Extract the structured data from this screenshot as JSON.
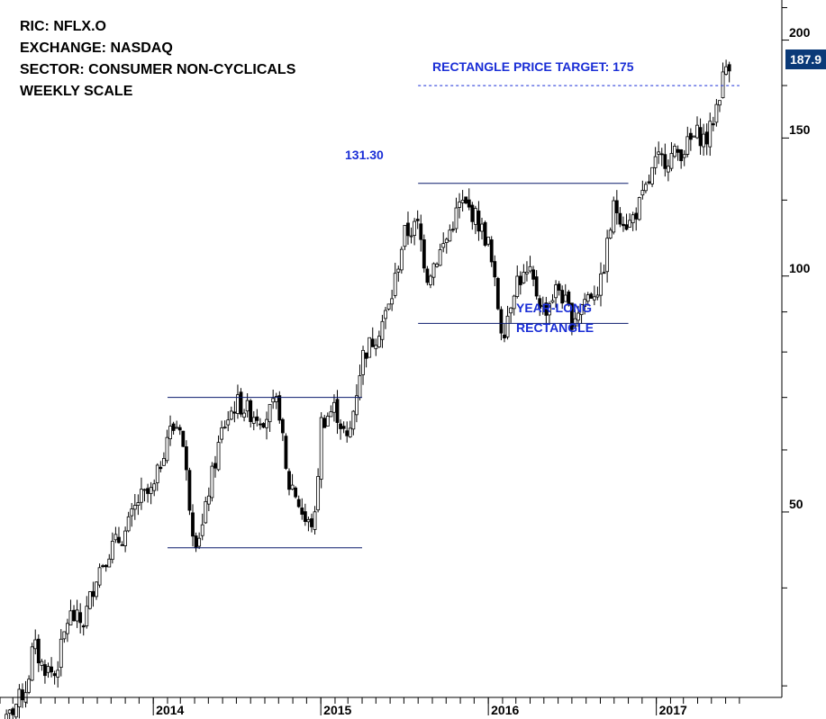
{
  "header": {
    "ric": "RIC: NFLX.O",
    "exchange": "EXCHANGE: NASDAQ",
    "sector": "SECTOR: CONSUMER NON-CYCLICALS",
    "scale": "WEEKLY SCALE"
  },
  "annotations": {
    "target_label": "RECTANGLE PRICE TARGET: 175",
    "high_label": "131.30",
    "rect_label_line1": "YEAR-LONG",
    "rect_label_line2": "RECTANGLE"
  },
  "last_price": "187.9",
  "colors": {
    "annotation_blue": "#1a2ed6",
    "price_box": "#0b3a78",
    "candle": "#000000"
  },
  "chart_data": {
    "type": "candlestick",
    "title": "RIC: NFLX.O",
    "scale": "log",
    "grid": false,
    "y_axis_side": "right",
    "ylim": [
      29,
      225
    ],
    "y_ticks": [
      {
        "value": 200,
        "label": "200"
      },
      {
        "value": 150,
        "label": "150"
      },
      {
        "value": 100,
        "label": "100"
      },
      {
        "value": 50,
        "label": "50"
      }
    ],
    "x_ticks": [
      {
        "date": "2014-01",
        "label": "2014"
      },
      {
        "date": "2015-01",
        "label": "2015"
      },
      {
        "date": "2016-01",
        "label": "2016"
      },
      {
        "date": "2017-01",
        "label": "2017"
      }
    ],
    "xlim": [
      "2013-02",
      "2017-07"
    ],
    "series_close_path": [
      [
        "2013-02-01",
        26
      ],
      [
        "2013-03-01",
        28
      ],
      [
        "2013-04-01",
        30
      ],
      [
        "2013-04-15",
        34
      ],
      [
        "2013-05-01",
        32
      ],
      [
        "2013-06-01",
        31
      ],
      [
        "2013-07-01",
        37
      ],
      [
        "2013-08-01",
        36
      ],
      [
        "2013-09-01",
        42
      ],
      [
        "2013-10-01",
        45
      ],
      [
        "2013-11-01",
        47
      ],
      [
        "2013-12-01",
        52
      ],
      [
        "2014-01-01",
        53
      ],
      [
        "2014-02-01",
        63
      ],
      [
        "2014-03-01",
        65
      ],
      [
        "2014-03-20",
        52
      ],
      [
        "2014-04-01",
        46
      ],
      [
        "2014-04-20",
        48
      ],
      [
        "2014-05-01",
        53
      ],
      [
        "2014-06-01",
        64
      ],
      [
        "2014-07-01",
        69
      ],
      [
        "2014-08-01",
        67
      ],
      [
        "2014-09-01",
        66
      ],
      [
        "2014-10-01",
        69
      ],
      [
        "2014-10-20",
        54
      ],
      [
        "2014-11-01",
        54
      ],
      [
        "2014-12-01",
        48
      ],
      [
        "2014-12-20",
        49
      ],
      [
        "2015-01-01",
        65
      ],
      [
        "2015-02-01",
        68
      ],
      [
        "2015-03-01",
        61
      ],
      [
        "2015-04-01",
        79
      ],
      [
        "2015-05-01",
        84
      ],
      [
        "2015-06-01",
        92
      ],
      [
        "2015-07-01",
        113
      ],
      [
        "2015-08-01",
        116
      ],
      [
        "2015-08-20",
        100
      ],
      [
        "2015-09-01",
        103
      ],
      [
        "2015-10-01",
        111
      ],
      [
        "2015-11-01",
        124
      ],
      [
        "2015-12-01",
        120
      ],
      [
        "2016-01-01",
        110
      ],
      [
        "2016-02-01",
        84
      ],
      [
        "2016-03-01",
        99
      ],
      [
        "2016-04-01",
        100
      ],
      [
        "2016-05-01",
        90
      ],
      [
        "2016-06-01",
        97
      ],
      [
        "2016-07-01",
        88
      ],
      [
        "2016-08-01",
        94
      ],
      [
        "2016-09-01",
        97
      ],
      [
        "2016-10-01",
        123
      ],
      [
        "2016-11-01",
        116
      ],
      [
        "2016-12-01",
        125
      ],
      [
        "2017-01-01",
        140
      ],
      [
        "2017-02-01",
        142
      ],
      [
        "2017-03-01",
        145
      ],
      [
        "2017-04-01",
        152
      ],
      [
        "2017-04-20",
        149
      ],
      [
        "2017-05-01",
        155
      ],
      [
        "2017-06-01",
        185
      ],
      [
        "2017-06-10",
        187.9
      ]
    ],
    "levels": [
      {
        "name": "2014 rectangle top",
        "value": 70,
        "from": "2014-02",
        "to": "2015-04"
      },
      {
        "name": "2014 rectangle bottom",
        "value": 45,
        "from": "2014-02",
        "to": "2015-04"
      },
      {
        "name": "year-long rectangle top",
        "value": 131.3,
        "from": "2015-08",
        "to": "2016-11"
      },
      {
        "name": "year-long rectangle bottom",
        "value": 87,
        "from": "2015-08",
        "to": "2016-11"
      },
      {
        "name": "price target",
        "value": 175,
        "from": "2015-08",
        "to": "2017-07",
        "style": "dotted"
      }
    ]
  }
}
